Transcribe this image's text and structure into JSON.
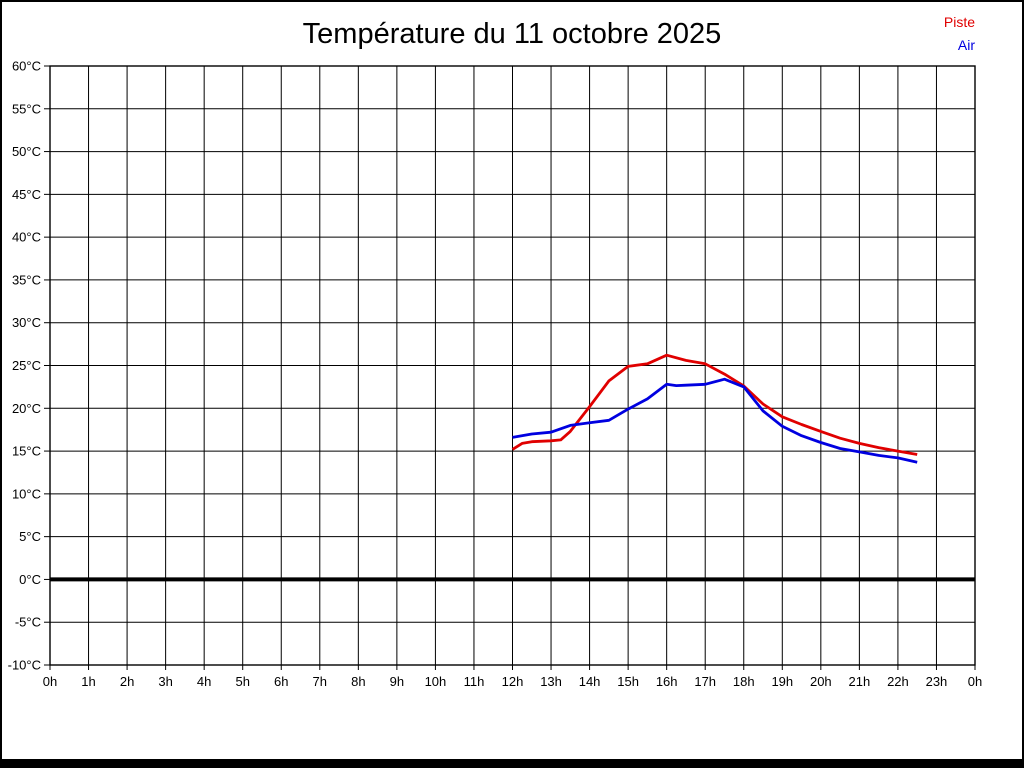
{
  "title": "Température du 11 octobre 2025",
  "legend": {
    "items": [
      {
        "label": "Piste",
        "color": "#e00000"
      },
      {
        "label": "Air",
        "color": "#0000e0"
      }
    ],
    "position": "top-right"
  },
  "colors": {
    "background": "#ffffff",
    "grid": "#000000",
    "frame": "#000000",
    "zero_line": "#000000",
    "text": "#000000",
    "page_border": "#000000"
  },
  "chart_data": {
    "type": "line",
    "title": "Température du 11 octobre 2025",
    "xlabel": "",
    "ylabel": "",
    "xlim": [
      0,
      24
    ],
    "ylim": [
      -10,
      60
    ],
    "grid": true,
    "legend_position": "top-right",
    "zero_line_value": 0,
    "x_ticks": [
      {
        "value": 0,
        "label": "0h"
      },
      {
        "value": 1,
        "label": "1h"
      },
      {
        "value": 2,
        "label": "2h"
      },
      {
        "value": 3,
        "label": "3h"
      },
      {
        "value": 4,
        "label": "4h"
      },
      {
        "value": 5,
        "label": "5h"
      },
      {
        "value": 6,
        "label": "6h"
      },
      {
        "value": 7,
        "label": "7h"
      },
      {
        "value": 8,
        "label": "8h"
      },
      {
        "value": 9,
        "label": "9h"
      },
      {
        "value": 10,
        "label": "10h"
      },
      {
        "value": 11,
        "label": "11h"
      },
      {
        "value": 12,
        "label": "12h"
      },
      {
        "value": 13,
        "label": "13h"
      },
      {
        "value": 14,
        "label": "14h"
      },
      {
        "value": 15,
        "label": "15h"
      },
      {
        "value": 16,
        "label": "16h"
      },
      {
        "value": 17,
        "label": "17h"
      },
      {
        "value": 18,
        "label": "18h"
      },
      {
        "value": 19,
        "label": "19h"
      },
      {
        "value": 20,
        "label": "20h"
      },
      {
        "value": 21,
        "label": "21h"
      },
      {
        "value": 22,
        "label": "22h"
      },
      {
        "value": 23,
        "label": "23h"
      },
      {
        "value": 24,
        "label": "0h"
      }
    ],
    "y_ticks": [
      {
        "value": 60,
        "label": "60°C"
      },
      {
        "value": 55,
        "label": "55°C"
      },
      {
        "value": 50,
        "label": "50°C"
      },
      {
        "value": 45,
        "label": "45°C"
      },
      {
        "value": 40,
        "label": "40°C"
      },
      {
        "value": 35,
        "label": "35°C"
      },
      {
        "value": 30,
        "label": "30°C"
      },
      {
        "value": 25,
        "label": "25°C"
      },
      {
        "value": 20,
        "label": "20°C"
      },
      {
        "value": 15,
        "label": "15°C"
      },
      {
        "value": 10,
        "label": "10°C"
      },
      {
        "value": 5,
        "label": "5°C"
      },
      {
        "value": 0,
        "label": "0°C"
      },
      {
        "value": -5,
        "label": "-5°C"
      },
      {
        "value": -10,
        "label": "-10°C"
      }
    ],
    "series": [
      {
        "name": "Piste",
        "color": "#e00000",
        "points": [
          [
            12.0,
            15.2
          ],
          [
            12.25,
            15.9
          ],
          [
            12.5,
            16.1
          ],
          [
            13.0,
            16.2
          ],
          [
            13.25,
            16.3
          ],
          [
            13.5,
            17.3
          ],
          [
            14.0,
            20.2
          ],
          [
            14.5,
            23.2
          ],
          [
            15.0,
            24.9
          ],
          [
            15.5,
            25.2
          ],
          [
            16.0,
            26.2
          ],
          [
            16.5,
            25.6
          ],
          [
            17.0,
            25.2
          ],
          [
            17.5,
            24.0
          ],
          [
            18.0,
            22.6
          ],
          [
            18.5,
            20.5
          ],
          [
            19.0,
            19.0
          ],
          [
            19.5,
            18.1
          ],
          [
            20.0,
            17.3
          ],
          [
            20.5,
            16.5
          ],
          [
            21.0,
            15.9
          ],
          [
            21.5,
            15.4
          ],
          [
            22.0,
            15.0
          ],
          [
            22.5,
            14.6
          ]
        ]
      },
      {
        "name": "Air",
        "color": "#0000e0",
        "points": [
          [
            12.0,
            16.6
          ],
          [
            12.5,
            17.0
          ],
          [
            13.0,
            17.2
          ],
          [
            13.5,
            18.0
          ],
          [
            14.0,
            18.3
          ],
          [
            14.5,
            18.6
          ],
          [
            15.0,
            19.9
          ],
          [
            15.5,
            21.1
          ],
          [
            16.0,
            22.8
          ],
          [
            16.25,
            22.65
          ],
          [
            16.5,
            22.7
          ],
          [
            17.0,
            22.8
          ],
          [
            17.5,
            23.4
          ],
          [
            18.0,
            22.5
          ],
          [
            18.5,
            19.7
          ],
          [
            19.0,
            17.9
          ],
          [
            19.5,
            16.8
          ],
          [
            20.0,
            16.0
          ],
          [
            20.5,
            15.3
          ],
          [
            21.0,
            14.9
          ],
          [
            21.5,
            14.5
          ],
          [
            22.0,
            14.2
          ],
          [
            22.5,
            13.7
          ]
        ]
      }
    ]
  }
}
